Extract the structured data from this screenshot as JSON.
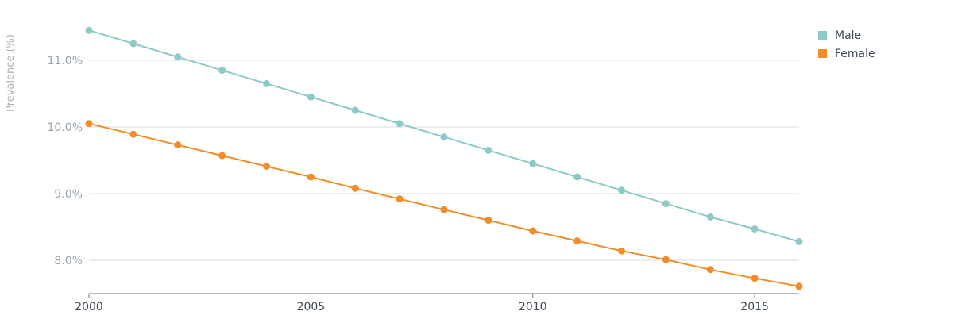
{
  "chart_data": {
    "type": "line",
    "title": "",
    "xlabel": "",
    "ylabel": "Prevalence (%)",
    "x": [
      2000,
      2001,
      2002,
      2003,
      2004,
      2005,
      2006,
      2007,
      2008,
      2009,
      2010,
      2011,
      2012,
      2013,
      2014,
      2015,
      2016
    ],
    "xticks": [
      "2000",
      "2005",
      "2010",
      "2015"
    ],
    "yticks": [
      "8.0%",
      "9.0%",
      "10.0%",
      "11.0%"
    ],
    "ylim": [
      7.5,
      11.5
    ],
    "grid": true,
    "legend_position": "top-right",
    "series": [
      {
        "name": "Male",
        "color": "#8ccac7",
        "values": [
          11.45,
          11.25,
          11.05,
          10.85,
          10.65,
          10.45,
          10.25,
          10.05,
          9.85,
          9.65,
          9.45,
          9.25,
          9.05,
          8.85,
          8.65,
          8.47,
          8.28
        ]
      },
      {
        "name": "Female",
        "color": "#f28c28",
        "values": [
          10.05,
          9.89,
          9.73,
          9.57,
          9.41,
          9.25,
          9.08,
          8.92,
          8.76,
          8.6,
          8.44,
          8.29,
          8.14,
          8.01,
          7.86,
          7.73,
          7.61
        ]
      }
    ]
  }
}
